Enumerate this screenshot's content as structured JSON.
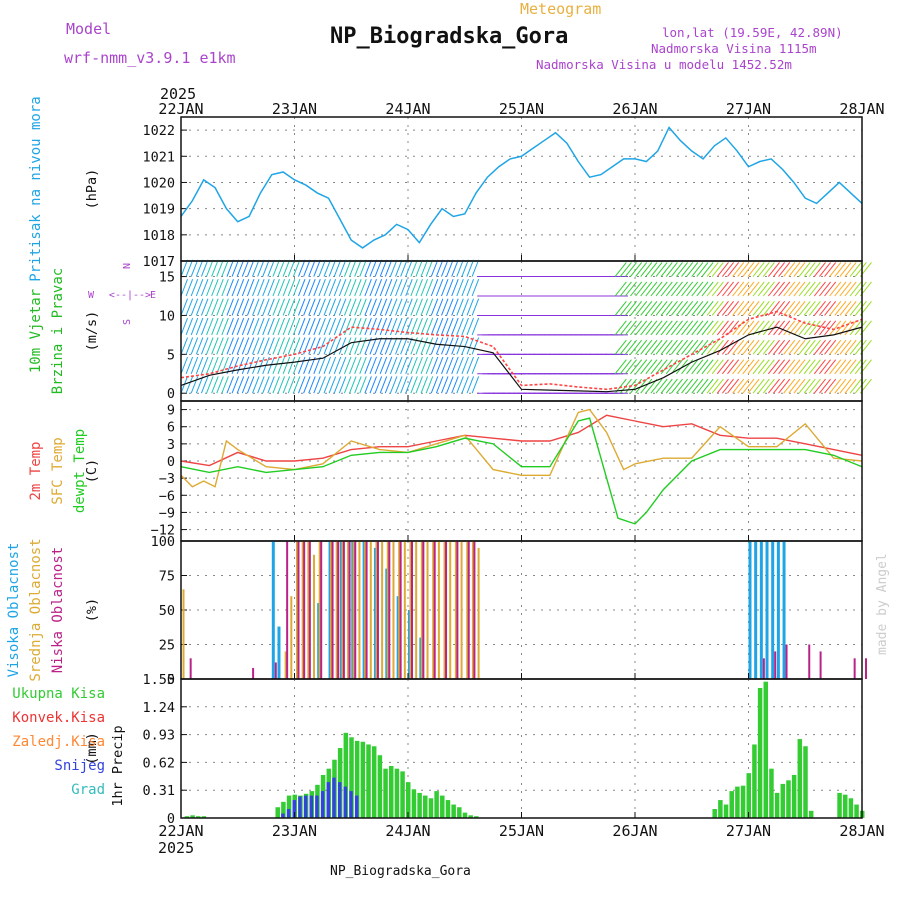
{
  "header": {
    "model_label": "Model",
    "model_name": "wrf-nmm_v3.9.1 e1km",
    "product": "Meteogram",
    "station": "NP_Biogradska_Gora",
    "coords": "lon,lat (19.59E, 42.89N)",
    "altitude": "Nadmorska Visina 1115m",
    "model_altitude": "Nadmorska Visina u modelu 1452.52m",
    "footer_station": "NP_Biogradska_Gora",
    "credit": "made by Angel"
  },
  "colors": {
    "pressure": "#1fa5e6",
    "title_purple": "#aa44cc",
    "product_orange": "#e8b040",
    "wind_label": "#22bb22",
    "temp_2m": "#ee4444",
    "temp_sfc": "#ddaa33",
    "temp_dew": "#22cc22",
    "cloud_high": "#1fa5e6",
    "cloud_mid": "#ddaa33",
    "cloud_low": "#bb2288",
    "precip_total": "#33cc33",
    "precip_conv": "#ee3333",
    "precip_frozen": "#ff8833",
    "precip_snow": "#3344dd",
    "precip_hail": "#33bbbb",
    "credit": "#cccccc"
  },
  "chart_data": [
    {
      "type": "line",
      "id": "pressure",
      "ylabel": "Pritisak na nivou mora",
      "unit": "(hPa)",
      "ylim": [
        1017,
        1022.5
      ],
      "yticks": [
        "1017",
        "1018",
        "1019",
        "1020",
        "1021",
        "1022"
      ],
      "x_unit": "days since 22JAN 00UTC",
      "xticks": [
        "22JAN",
        "23JAN",
        "24JAN",
        "25JAN",
        "26JAN",
        "27JAN",
        "28JAN"
      ],
      "year": "2025",
      "grid": true,
      "series": [
        {
          "name": "",
          "x": [
            0,
            0.1,
            0.2,
            0.3,
            0.4,
            0.5,
            0.6,
            0.7,
            0.8,
            0.9,
            1.0,
            1.1,
            1.2,
            1.3,
            1.4,
            1.5,
            1.6,
            1.7,
            1.8,
            1.9,
            2.0,
            2.1,
            2.2,
            2.3,
            2.4,
            2.5,
            2.6,
            2.7,
            2.8,
            2.9,
            3.0,
            3.1,
            3.2,
            3.3,
            3.4,
            3.5,
            3.6,
            3.7,
            3.8,
            3.9,
            4.0,
            4.1,
            4.2,
            4.3,
            4.4,
            4.5,
            4.6,
            4.7,
            4.8,
            4.9,
            5.0,
            5.1,
            5.2,
            5.3,
            5.4,
            5.5,
            5.6,
            5.7,
            5.8,
            5.9,
            6.0
          ],
          "values": [
            1018.7,
            1019.3,
            1020.1,
            1019.8,
            1019.0,
            1018.5,
            1018.7,
            1019.6,
            1020.3,
            1020.4,
            1020.1,
            1019.9,
            1019.6,
            1019.4,
            1018.6,
            1017.8,
            1017.5,
            1017.8,
            1018.0,
            1018.4,
            1018.2,
            1017.7,
            1018.4,
            1019.0,
            1018.7,
            1018.8,
            1019.6,
            1020.2,
            1020.6,
            1020.9,
            1021.0,
            1021.3,
            1021.6,
            1021.9,
            1021.5,
            1020.8,
            1020.2,
            1020.3,
            1020.6,
            1020.9,
            1020.9,
            1020.8,
            1021.2,
            1022.1,
            1021.6,
            1021.2,
            1020.9,
            1021.4,
            1021.7,
            1021.2,
            1020.6,
            1020.8,
            1020.9,
            1020.5,
            1020.0,
            1019.4,
            1019.2,
            1019.6,
            1020.0,
            1019.6,
            1019.2
          ]
        }
      ]
    },
    {
      "type": "line",
      "id": "wind",
      "ylabel": "10m Vjetar Brzina i Pravac",
      "unit": "(m/s)",
      "ylim": [
        -1,
        17
      ],
      "yticks": [
        "0",
        "5",
        "10",
        "15"
      ],
      "compass_labels": [
        "N",
        "W",
        "E",
        "S"
      ],
      "direction_hint": "<--|-->",
      "grid": true,
      "series": [
        {
          "name": "",
          "x": [
            0,
            0.25,
            0.5,
            0.75,
            1.0,
            1.25,
            1.5,
            1.75,
            2.0,
            2.25,
            2.5,
            2.75,
            3.0,
            3.25,
            3.5,
            3.75,
            4.0,
            4.25,
            4.5,
            4.75,
            5.0,
            5.25,
            5.5,
            5.75,
            6.0
          ],
          "values": [
            2,
            2.5,
            3.5,
            4.3,
            5.0,
            6.0,
            8.5,
            8.2,
            7.8,
            7.5,
            7.3,
            6.0,
            1.0,
            1.2,
            0.8,
            0.5,
            1.0,
            3.0,
            5.0,
            7.0,
            9.5,
            10.5,
            9.0,
            8.2,
            9.5
          ]
        },
        {
          "name": "",
          "x": [
            0,
            0.25,
            0.5,
            0.75,
            1.0,
            1.25,
            1.5,
            1.75,
            2.0,
            2.25,
            2.5,
            2.75,
            3.0,
            3.25,
            3.5,
            3.75,
            4.0,
            4.25,
            4.5,
            4.75,
            5.0,
            5.25,
            5.5,
            5.75,
            6.0
          ],
          "values": [
            1,
            2.3,
            3,
            3.6,
            4.0,
            4.5,
            6.5,
            7.0,
            7.0,
            6.3,
            6.0,
            5.2,
            0.5,
            0.4,
            0.3,
            0.2,
            0.5,
            2.0,
            4.0,
            5.5,
            7.5,
            8.5,
            7.0,
            7.5,
            8.5
          ]
        }
      ]
    },
    {
      "type": "line",
      "id": "temperature",
      "ylabel": "2m Temp SFC Temp dewpt Temp",
      "series_labels": [
        "2m Temp",
        "SFC Temp",
        "dewpt Temp"
      ],
      "unit": "(C)",
      "ylim": [
        -14,
        10.5
      ],
      "yticks": [
        "9",
        "6",
        "3",
        "0",
        "−3",
        "−6",
        "−9",
        "−12"
      ],
      "grid": true,
      "series": [
        {
          "name": "2m Temp",
          "x": [
            0,
            0.25,
            0.5,
            0.75,
            1.0,
            1.25,
            1.5,
            1.75,
            2.0,
            2.25,
            2.5,
            2.75,
            3.0,
            3.25,
            3.5,
            3.75,
            4.0,
            4.25,
            4.5,
            4.75,
            5.0,
            5.25,
            5.5,
            5.75,
            6.0
          ],
          "values": [
            0,
            -0.8,
            1.5,
            0,
            0,
            0.5,
            2,
            2.5,
            2.5,
            3.5,
            4.5,
            4,
            3.5,
            3.5,
            5,
            8,
            7,
            6,
            6.5,
            4.5,
            4,
            4,
            3,
            2,
            1
          ]
        },
        {
          "name": "SFC Temp",
          "x": [
            0,
            0.1,
            0.2,
            0.3,
            0.4,
            0.5,
            0.75,
            1.0,
            1.25,
            1.5,
            1.75,
            2.0,
            2.25,
            2.5,
            2.75,
            3.0,
            3.25,
            3.5,
            3.6,
            3.75,
            3.9,
            4.0,
            4.25,
            4.5,
            4.75,
            5.0,
            5.25,
            5.5,
            5.75,
            6.0
          ],
          "values": [
            -2.5,
            -4.5,
            -3.5,
            -4.5,
            3.5,
            2,
            -1,
            -1.5,
            -0.5,
            3.5,
            2,
            1.5,
            3,
            4.5,
            -1.5,
            -2.5,
            -2.5,
            8.5,
            9,
            5,
            -1.5,
            -0.5,
            0.5,
            0.5,
            6,
            2.5,
            2.5,
            6.5,
            0.5,
            0
          ]
        },
        {
          "name": "dewpt Temp",
          "x": [
            0,
            0.25,
            0.5,
            0.75,
            1.0,
            1.25,
            1.5,
            1.75,
            2.0,
            2.25,
            2.5,
            2.75,
            3.0,
            3.25,
            3.5,
            3.6,
            3.75,
            3.85,
            4.0,
            4.1,
            4.25,
            4.5,
            4.75,
            5.0,
            5.25,
            5.5,
            5.75,
            6.0
          ],
          "values": [
            -1,
            -2,
            -1,
            -2,
            -1.5,
            -1,
            1,
            1.5,
            1.5,
            2.5,
            4,
            3,
            -1,
            -1,
            7,
            7.5,
            -3,
            -10,
            -11,
            -9,
            -5,
            0,
            2,
            2,
            2,
            2,
            1,
            -1
          ]
        }
      ]
    },
    {
      "type": "bar",
      "id": "cloud",
      "ylabel": "Visoka Oblacnost Srednja Oblacnost Niska Oblacnost",
      "series_labels": [
        "Visoka Oblacnost",
        "Srednja Oblacnost",
        "Niska Oblacnost"
      ],
      "unit": "(%)",
      "ylim": [
        0,
        100
      ],
      "yticks": [
        "0",
        "25",
        "50",
        "75",
        "100"
      ],
      "grid": true,
      "series": [
        {
          "name": "Visoka Oblacnost",
          "x": [
            0.8,
            0.85,
            1.2,
            1.3,
            1.4,
            1.5,
            1.6,
            1.7,
            1.8,
            1.9,
            2.0,
            2.1,
            5.0,
            5.05,
            5.1,
            5.15,
            5.2,
            5.25,
            5.3
          ],
          "values": [
            100,
            38,
            55,
            100,
            100,
            100,
            100,
            95,
            80,
            60,
            50,
            30,
            100,
            100,
            100,
            100,
            100,
            100,
            100
          ]
        },
        {
          "name": "Srednja Oblacnost",
          "x": [
            0,
            0.9,
            0.95,
            1.0,
            1.05,
            1.1,
            1.15,
            1.2,
            1.3,
            1.35,
            1.4,
            1.45,
            1.5,
            1.55,
            1.6,
            1.65,
            1.7,
            1.75,
            1.8,
            1.85,
            1.9,
            1.95,
            2.0,
            2.05,
            2.1,
            2.15,
            2.2,
            2.25,
            2.3,
            2.35,
            2.4,
            2.45,
            2.5,
            2.55,
            2.6
          ],
          "values": [
            65,
            20,
            60,
            100,
            100,
            100,
            90,
            100,
            100,
            100,
            100,
            100,
            100,
            100,
            100,
            100,
            100,
            100,
            100,
            100,
            100,
            100,
            100,
            100,
            100,
            100,
            100,
            100,
            100,
            100,
            100,
            100,
            100,
            100,
            95
          ]
        },
        {
          "name": "Niska Oblacnost",
          "x": [
            0.05,
            0.6,
            0.8,
            0.9,
            1.0,
            1.05,
            1.1,
            1.2,
            1.3,
            1.35,
            1.4,
            1.45,
            1.5,
            1.6,
            1.7,
            1.8,
            1.9,
            2.0,
            2.1,
            2.2,
            2.3,
            2.4,
            2.5,
            2.55,
            5.1,
            5.2,
            5.3,
            5.5,
            5.6,
            5.9,
            6.0
          ],
          "values": [
            15,
            8,
            12,
            100,
            100,
            100,
            100,
            100,
            100,
            100,
            100,
            100,
            100,
            100,
            100,
            100,
            100,
            100,
            100,
            100,
            100,
            100,
            100,
            100,
            15,
            20,
            25,
            25,
            20,
            15,
            15
          ]
        }
      ]
    },
    {
      "type": "bar",
      "id": "precip",
      "ylabel": "1hr Precip",
      "unit": "(mm)",
      "legend_items": [
        "Ukupna Kisa",
        "Konvek.Kisa",
        "Zaledj.Kisa",
        "Snijeg",
        "Grad"
      ],
      "ylim": [
        0,
        1.55
      ],
      "yticks": [
        "0",
        "0.31",
        "0.62",
        "0.93",
        "1.24",
        "1.55"
      ],
      "grid": true,
      "series": [
        {
          "name": "Ukupna Kisa",
          "x": [
            0.05,
            0.1,
            0.15,
            0.2,
            0.85,
            0.9,
            0.95,
            1.0,
            1.05,
            1.1,
            1.15,
            1.2,
            1.25,
            1.3,
            1.35,
            1.4,
            1.45,
            1.5,
            1.55,
            1.6,
            1.65,
            1.7,
            1.75,
            1.8,
            1.85,
            1.9,
            1.95,
            2.0,
            2.05,
            2.1,
            2.15,
            2.2,
            2.25,
            2.3,
            2.35,
            2.4,
            2.45,
            2.5,
            2.55,
            2.6,
            4.7,
            4.75,
            4.8,
            4.85,
            4.9,
            4.95,
            5.0,
            5.05,
            5.1,
            5.15,
            5.2,
            5.25,
            5.3,
            5.35,
            5.4,
            5.45,
            5.5,
            5.55,
            5.8,
            5.85,
            5.9,
            5.95,
            6.0
          ],
          "values": [
            0.02,
            0.03,
            0.02,
            0.02,
            0.12,
            0.18,
            0.25,
            0.26,
            0.25,
            0.27,
            0.3,
            0.37,
            0.48,
            0.55,
            0.65,
            0.78,
            0.95,
            0.9,
            0.86,
            0.85,
            0.82,
            0.8,
            0.7,
            0.55,
            0.58,
            0.55,
            0.52,
            0.4,
            0.32,
            0.28,
            0.25,
            0.22,
            0.3,
            0.25,
            0.2,
            0.15,
            0.12,
            0.06,
            0.03,
            0.02,
            0.1,
            0.2,
            0.15,
            0.3,
            0.35,
            0.36,
            0.5,
            0.82,
            1.45,
            1.52,
            0.55,
            0.28,
            0.38,
            0.42,
            0.48,
            0.88,
            0.8,
            0.08,
            0.28,
            0.26,
            0.22,
            0.15,
            0.08
          ]
        },
        {
          "name": "Snijeg",
          "x": [
            0.9,
            0.95,
            1.0,
            1.05,
            1.1,
            1.15,
            1.2,
            1.25,
            1.3,
            1.35,
            1.4,
            1.45,
            1.5,
            1.55
          ],
          "values": [
            0.05,
            0.1,
            0.2,
            0.24,
            0.25,
            0.25,
            0.25,
            0.3,
            0.4,
            0.45,
            0.4,
            0.35,
            0.3,
            0.25
          ]
        }
      ]
    }
  ],
  "footer": {
    "xticks": [
      "22JAN",
      "23JAN",
      "24JAN",
      "25JAN",
      "26JAN",
      "27JAN",
      "28JAN"
    ],
    "year": "2025"
  }
}
